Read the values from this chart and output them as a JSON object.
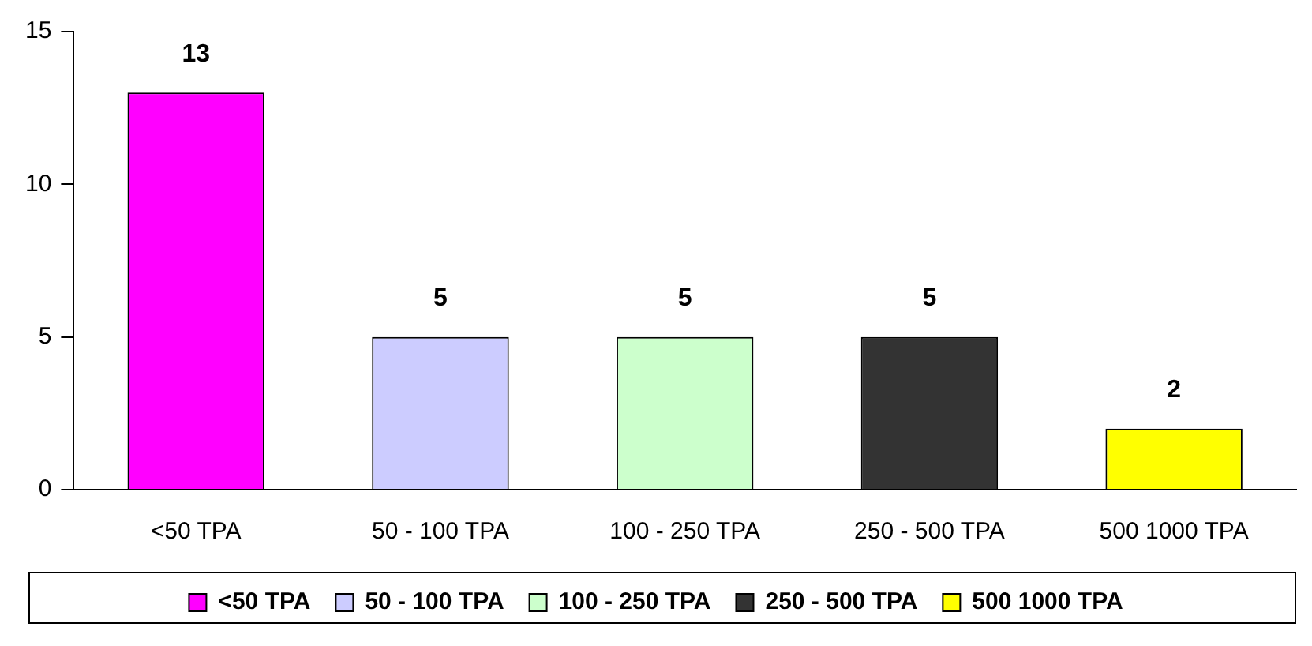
{
  "chart_data": {
    "type": "bar",
    "categories": [
      "<50 TPA",
      "50 - 100 TPA",
      "100 - 250 TPA",
      "250 - 500 TPA",
      "500 1000 TPA"
    ],
    "series": [
      {
        "name": "<50 TPA",
        "color": "#ff00ff",
        "values": [
          13,
          null,
          null,
          null,
          null
        ]
      },
      {
        "name": "50 - 100 TPA",
        "color": "#ccccff",
        "values": [
          null,
          5,
          null,
          null,
          null
        ]
      },
      {
        "name": "100 - 250 TPA",
        "color": "#ccffcc",
        "values": [
          null,
          null,
          5,
          null,
          null
        ]
      },
      {
        "name": "250 - 500 TPA",
        "color": "#333333",
        "values": [
          null,
          null,
          null,
          5,
          null
        ]
      },
      {
        "name": "500 1000 TPA",
        "color": "#ffff00",
        "values": [
          null,
          null,
          null,
          null,
          2
        ]
      }
    ],
    "ylim": [
      0,
      15
    ],
    "yticks": [
      0,
      5,
      10,
      15
    ],
    "legend": "bottom",
    "data_labels": true
  }
}
